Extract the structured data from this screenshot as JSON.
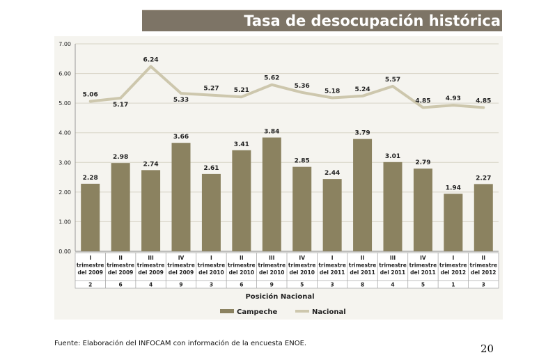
{
  "page": {
    "title": "Tasa de desocupación  histórica",
    "source": "Fuente: Elaboración del INFOCAM con información de la encuesta ENOE.",
    "page_number": "20"
  },
  "chart_data": {
    "type": "bar",
    "categories": [
      [
        "I",
        "trimestre",
        "del 2009"
      ],
      [
        "II",
        "trimestre",
        "del 2009"
      ],
      [
        "III",
        "trimestre",
        "del 2009"
      ],
      [
        "IV",
        "trimestre",
        "del 2009"
      ],
      [
        "I",
        "trimestre",
        "del 2010"
      ],
      [
        "II",
        "trimestre",
        "del 2010"
      ],
      [
        "III",
        "trimestre",
        "del 2010"
      ],
      [
        "IV",
        "trimestre",
        "del 2010"
      ],
      [
        "I",
        "trimestre",
        "del 2011"
      ],
      [
        "II",
        "trimestre",
        "del 2011"
      ],
      [
        "III",
        "trimestre",
        "del 2011"
      ],
      [
        "IV",
        "trimestre",
        "del 2011"
      ],
      [
        "I",
        "trimestre",
        "del 2012"
      ],
      [
        "II",
        "trimestre",
        "del 2012"
      ]
    ],
    "series": [
      {
        "name": "Campeche",
        "kind": "bar",
        "color": "#8b8260",
        "values": [
          2.28,
          2.98,
          2.74,
          3.66,
          2.61,
          3.41,
          3.84,
          2.85,
          2.44,
          3.79,
          3.01,
          2.79,
          1.94,
          2.27
        ],
        "labels": [
          "2.28",
          "2.98",
          "2.74",
          "3.66",
          "2.61",
          "3.41",
          "3.84",
          "2.85",
          "2.44",
          "3.79",
          "3.01",
          "2.79",
          "1.94",
          "2.27"
        ]
      },
      {
        "name": "Nacional",
        "kind": "line",
        "color": "#cdc7ad",
        "values": [
          5.06,
          5.17,
          6.24,
          5.33,
          5.27,
          5.21,
          5.62,
          5.36,
          5.18,
          5.24,
          5.57,
          4.85,
          4.93,
          4.85
        ],
        "labels": [
          "5.06",
          "5.17",
          "6.24",
          "5.33",
          "5.27",
          "5.21",
          "5.62",
          "5.36",
          "5.18",
          "5.24",
          "5.57",
          "4.85",
          "4.93",
          "4.85"
        ]
      }
    ],
    "table_row": {
      "name": "Posición Nacional",
      "values": [
        "2",
        "6",
        "4",
        "9",
        "3",
        "6",
        "9",
        "5",
        "3",
        "8",
        "4",
        "5",
        "1",
        "3"
      ]
    },
    "yticks": [
      "0.00",
      "1.00",
      "2.00",
      "3.00",
      "4.00",
      "5.00",
      "6.00",
      "7.00"
    ],
    "ylim": [
      0,
      7
    ],
    "grid": true,
    "legend_position": "bottom"
  }
}
